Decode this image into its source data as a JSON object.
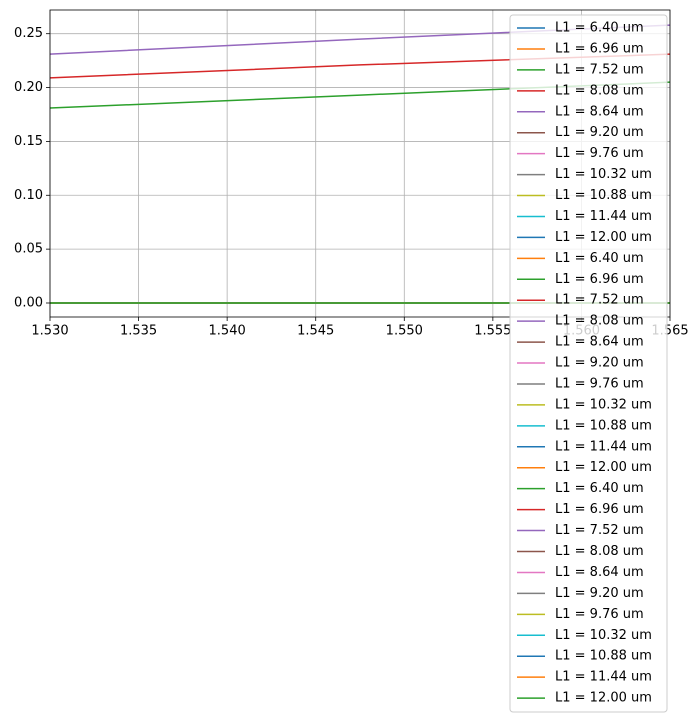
{
  "chart_data": {
    "type": "line",
    "x": [
      1.53,
      1.5475,
      1.565
    ],
    "xlim": [
      1.53,
      1.565
    ],
    "xticks": [
      {
        "value": 1.53,
        "label": "1.530"
      },
      {
        "value": 1.535,
        "label": "1.535"
      },
      {
        "value": 1.54,
        "label": "1.540"
      },
      {
        "value": 1.545,
        "label": "1.545"
      },
      {
        "value": 1.55,
        "label": "1.550"
      },
      {
        "value": 1.555,
        "label": "1.555"
      },
      {
        "value": 1.56,
        "label": "1.560"
      },
      {
        "value": 1.565,
        "label": "1.565"
      }
    ],
    "ylim": [
      -0.013,
      0.272
    ],
    "yticks": [
      {
        "value": 0,
        "label": "0.00"
      },
      {
        "value": 0.05,
        "label": "0.05"
      },
      {
        "value": 0.1,
        "label": "0.10"
      },
      {
        "value": 0.15,
        "label": "0.15"
      },
      {
        "value": 0.2,
        "label": "0.20"
      },
      {
        "value": 0.25,
        "label": "0.25"
      }
    ],
    "grid": true,
    "legend": "upper right",
    "series": [
      {
        "name": "L1 = 6.40 um",
        "color": "#1f77b4",
        "values": [
          0,
          0,
          0
        ]
      },
      {
        "name": "L1 = 6.96 um",
        "color": "#ff7f0e",
        "values": [
          0,
          0,
          0
        ]
      },
      {
        "name": "L1 = 7.52 um",
        "color": "#2ca02c",
        "values": [
          0,
          0,
          0
        ]
      },
      {
        "name": "L1 = 8.08 um",
        "color": "#d62728",
        "values": [
          0,
          0,
          0
        ]
      },
      {
        "name": "L1 = 8.64 um",
        "color": "#9467bd",
        "values": [
          0,
          0,
          0
        ]
      },
      {
        "name": "L1 = 9.20 um",
        "color": "#8c564b",
        "values": [
          0,
          0,
          0
        ]
      },
      {
        "name": "L1 = 9.76 um",
        "color": "#e377c2",
        "values": [
          0,
          0,
          0
        ]
      },
      {
        "name": "L1 = 10.32 um",
        "color": "#7f7f7f",
        "values": [
          0,
          0,
          0
        ]
      },
      {
        "name": "L1 = 10.88 um",
        "color": "#bcbd22",
        "values": [
          0,
          0,
          0
        ]
      },
      {
        "name": "L1 = 11.44 um",
        "color": "#17becf",
        "values": [
          0,
          0,
          0
        ]
      },
      {
        "name": "L1 = 12.00 um",
        "color": "#1f77b4",
        "values": [
          0,
          0,
          0
        ]
      },
      {
        "name": "L1 = 6.40 um",
        "color": "#ff7f0e",
        "values": [
          0,
          0,
          0
        ]
      },
      {
        "name": "L1 = 6.96 um",
        "color": "#2ca02c",
        "values": [
          0,
          0,
          0
        ]
      },
      {
        "name": "L1 = 7.52 um",
        "color": "#d62728",
        "values": [
          0,
          0,
          0
        ]
      },
      {
        "name": "L1 = 8.08 um",
        "color": "#9467bd",
        "values": [
          0,
          0,
          0
        ]
      },
      {
        "name": "L1 = 8.64 um",
        "color": "#8c564b",
        "values": [
          0,
          0,
          0
        ]
      },
      {
        "name": "L1 = 9.20 um",
        "color": "#e377c2",
        "values": [
          0,
          0,
          0
        ]
      },
      {
        "name": "L1 = 9.76 um",
        "color": "#7f7f7f",
        "values": [
          0,
          0,
          0
        ]
      },
      {
        "name": "L1 = 10.32 um",
        "color": "#bcbd22",
        "values": [
          0,
          0,
          0
        ]
      },
      {
        "name": "L1 = 10.88 um",
        "color": "#17becf",
        "values": [
          0,
          0,
          0
        ]
      },
      {
        "name": "L1 = 11.44 um",
        "color": "#1f77b4",
        "values": [
          0,
          0,
          0
        ]
      },
      {
        "name": "L1 = 12.00 um",
        "color": "#ff7f0e",
        "values": [
          0,
          0,
          0
        ]
      },
      {
        "name": "L1 = 6.40 um",
        "color": "#2ca02c",
        "values": [
          0.181,
          0.193,
          0.205
        ]
      },
      {
        "name": "L1 = 6.96 um",
        "color": "#d62728",
        "values": [
          0.209,
          0.221,
          0.231
        ]
      },
      {
        "name": "L1 = 7.52 um",
        "color": "#9467bd",
        "values": [
          0.231,
          0.245,
          0.258
        ]
      },
      {
        "name": "L1 = 8.08 um",
        "color": "#8c564b",
        "values": [
          0,
          0,
          0
        ]
      },
      {
        "name": "L1 = 8.64 um",
        "color": "#e377c2",
        "values": [
          0,
          0,
          0
        ]
      },
      {
        "name": "L1 = 9.20 um",
        "color": "#7f7f7f",
        "values": [
          0,
          0,
          0
        ]
      },
      {
        "name": "L1 = 9.76 um",
        "color": "#bcbd22",
        "values": [
          0,
          0,
          0
        ]
      },
      {
        "name": "L1 = 10.32 um",
        "color": "#17becf",
        "values": [
          0,
          0,
          0
        ]
      },
      {
        "name": "L1 = 10.88 um",
        "color": "#1f77b4",
        "values": [
          0,
          0,
          0
        ]
      },
      {
        "name": "L1 = 11.44 um",
        "color": "#ff7f0e",
        "values": [
          0,
          0,
          0
        ]
      },
      {
        "name": "L1 = 12.00 um",
        "color": "#2ca02c",
        "values": [
          0,
          0,
          0
        ]
      }
    ]
  }
}
